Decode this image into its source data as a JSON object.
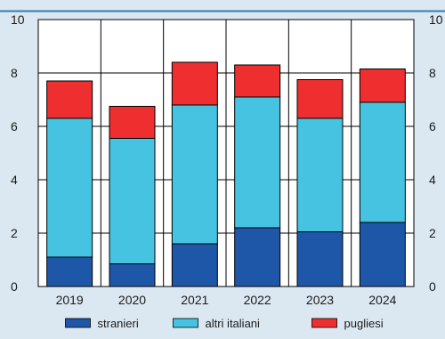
{
  "chart_data": {
    "type": "bar",
    "stacked": true,
    "categories": [
      "2019",
      "2020",
      "2021",
      "2022",
      "2023",
      "2024"
    ],
    "series": [
      {
        "name": "stranieri",
        "color": "#1f57a8",
        "values": [
          1.1,
          0.85,
          1.6,
          2.2,
          2.05,
          2.4
        ]
      },
      {
        "name": "altri italiani",
        "color": "#45c3e0",
        "values": [
          5.2,
          4.7,
          5.2,
          4.9,
          4.25,
          4.5
        ]
      },
      {
        "name": "pugliesi",
        "color": "#ee2e2f",
        "values": [
          1.4,
          1.2,
          1.6,
          1.2,
          1.45,
          1.25
        ]
      }
    ],
    "ylim": [
      0,
      10
    ],
    "yticks": [
      0,
      2,
      4,
      6,
      8,
      10
    ],
    "grid": true,
    "legend_position": "bottom",
    "colors": {
      "background": "#dbe8f1",
      "plot_background": "#ffffff",
      "top_rule": "#2b7fb0"
    }
  }
}
